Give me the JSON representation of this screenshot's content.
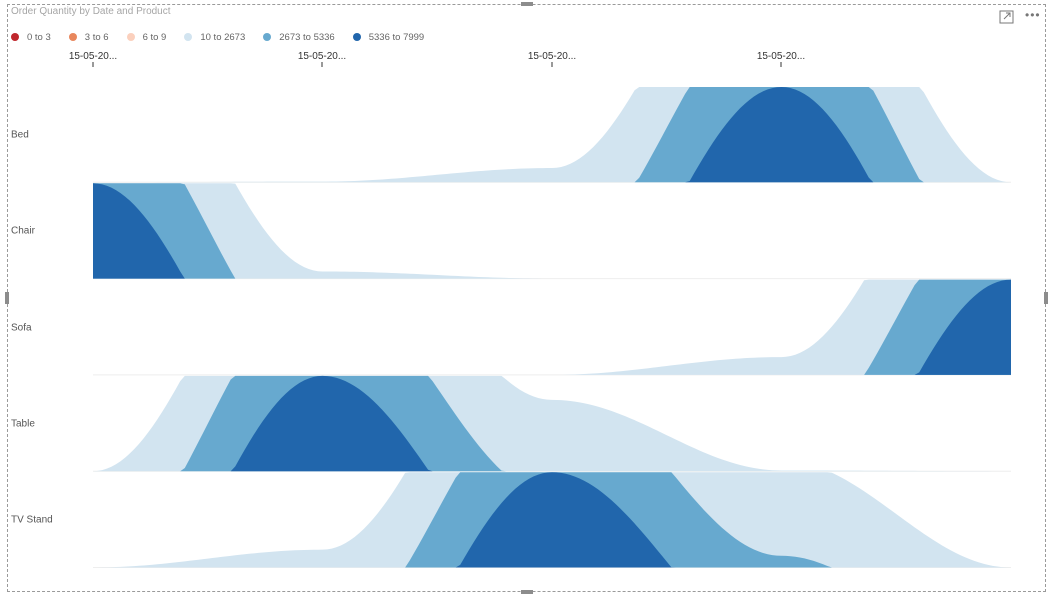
{
  "visual": {
    "title": "Order Quantity by Date and Product",
    "focus_icon": "focus-mode-icon",
    "more_icon": "more-options-icon"
  },
  "chart_data": {
    "type": "area",
    "title": "Order Quantity by Date and Product",
    "xlabel": "",
    "ylabel": "",
    "x_tick_labels": [
      "15-05-20...",
      "15-05-20...",
      "15-05-20...",
      "15-05-20..."
    ],
    "legend": {
      "placement": "top-left",
      "entries": [
        {
          "label": "0 to 3",
          "color": "#c0272d"
        },
        {
          "label": "3 to 6",
          "color": "#e8875d"
        },
        {
          "label": "6 to 9",
          "color": "#fbd0bd"
        },
        {
          "label": "10 to 2673",
          "color": "#d2e4f0"
        },
        {
          "label": "2673 to 5336",
          "color": "#67a9cf"
        },
        {
          "label": "5336 to 7999",
          "color": "#2166ac"
        }
      ]
    },
    "x": [
      0,
      1,
      2,
      3,
      4
    ],
    "series": [
      {
        "name": "Bed",
        "values": [
          0,
          20,
          400,
          7999,
          0
        ]
      },
      {
        "name": "Chair",
        "values": [
          7999,
          200,
          0,
          0,
          0
        ]
      },
      {
        "name": "Sofa",
        "values": [
          0,
          0,
          0,
          500,
          7999
        ]
      },
      {
        "name": "Table",
        "values": [
          0,
          7999,
          2000,
          20,
          0
        ]
      },
      {
        "name": "TV Stand",
        "values": [
          0,
          500,
          7999,
          3000,
          0
        ]
      }
    ],
    "grid": false
  }
}
